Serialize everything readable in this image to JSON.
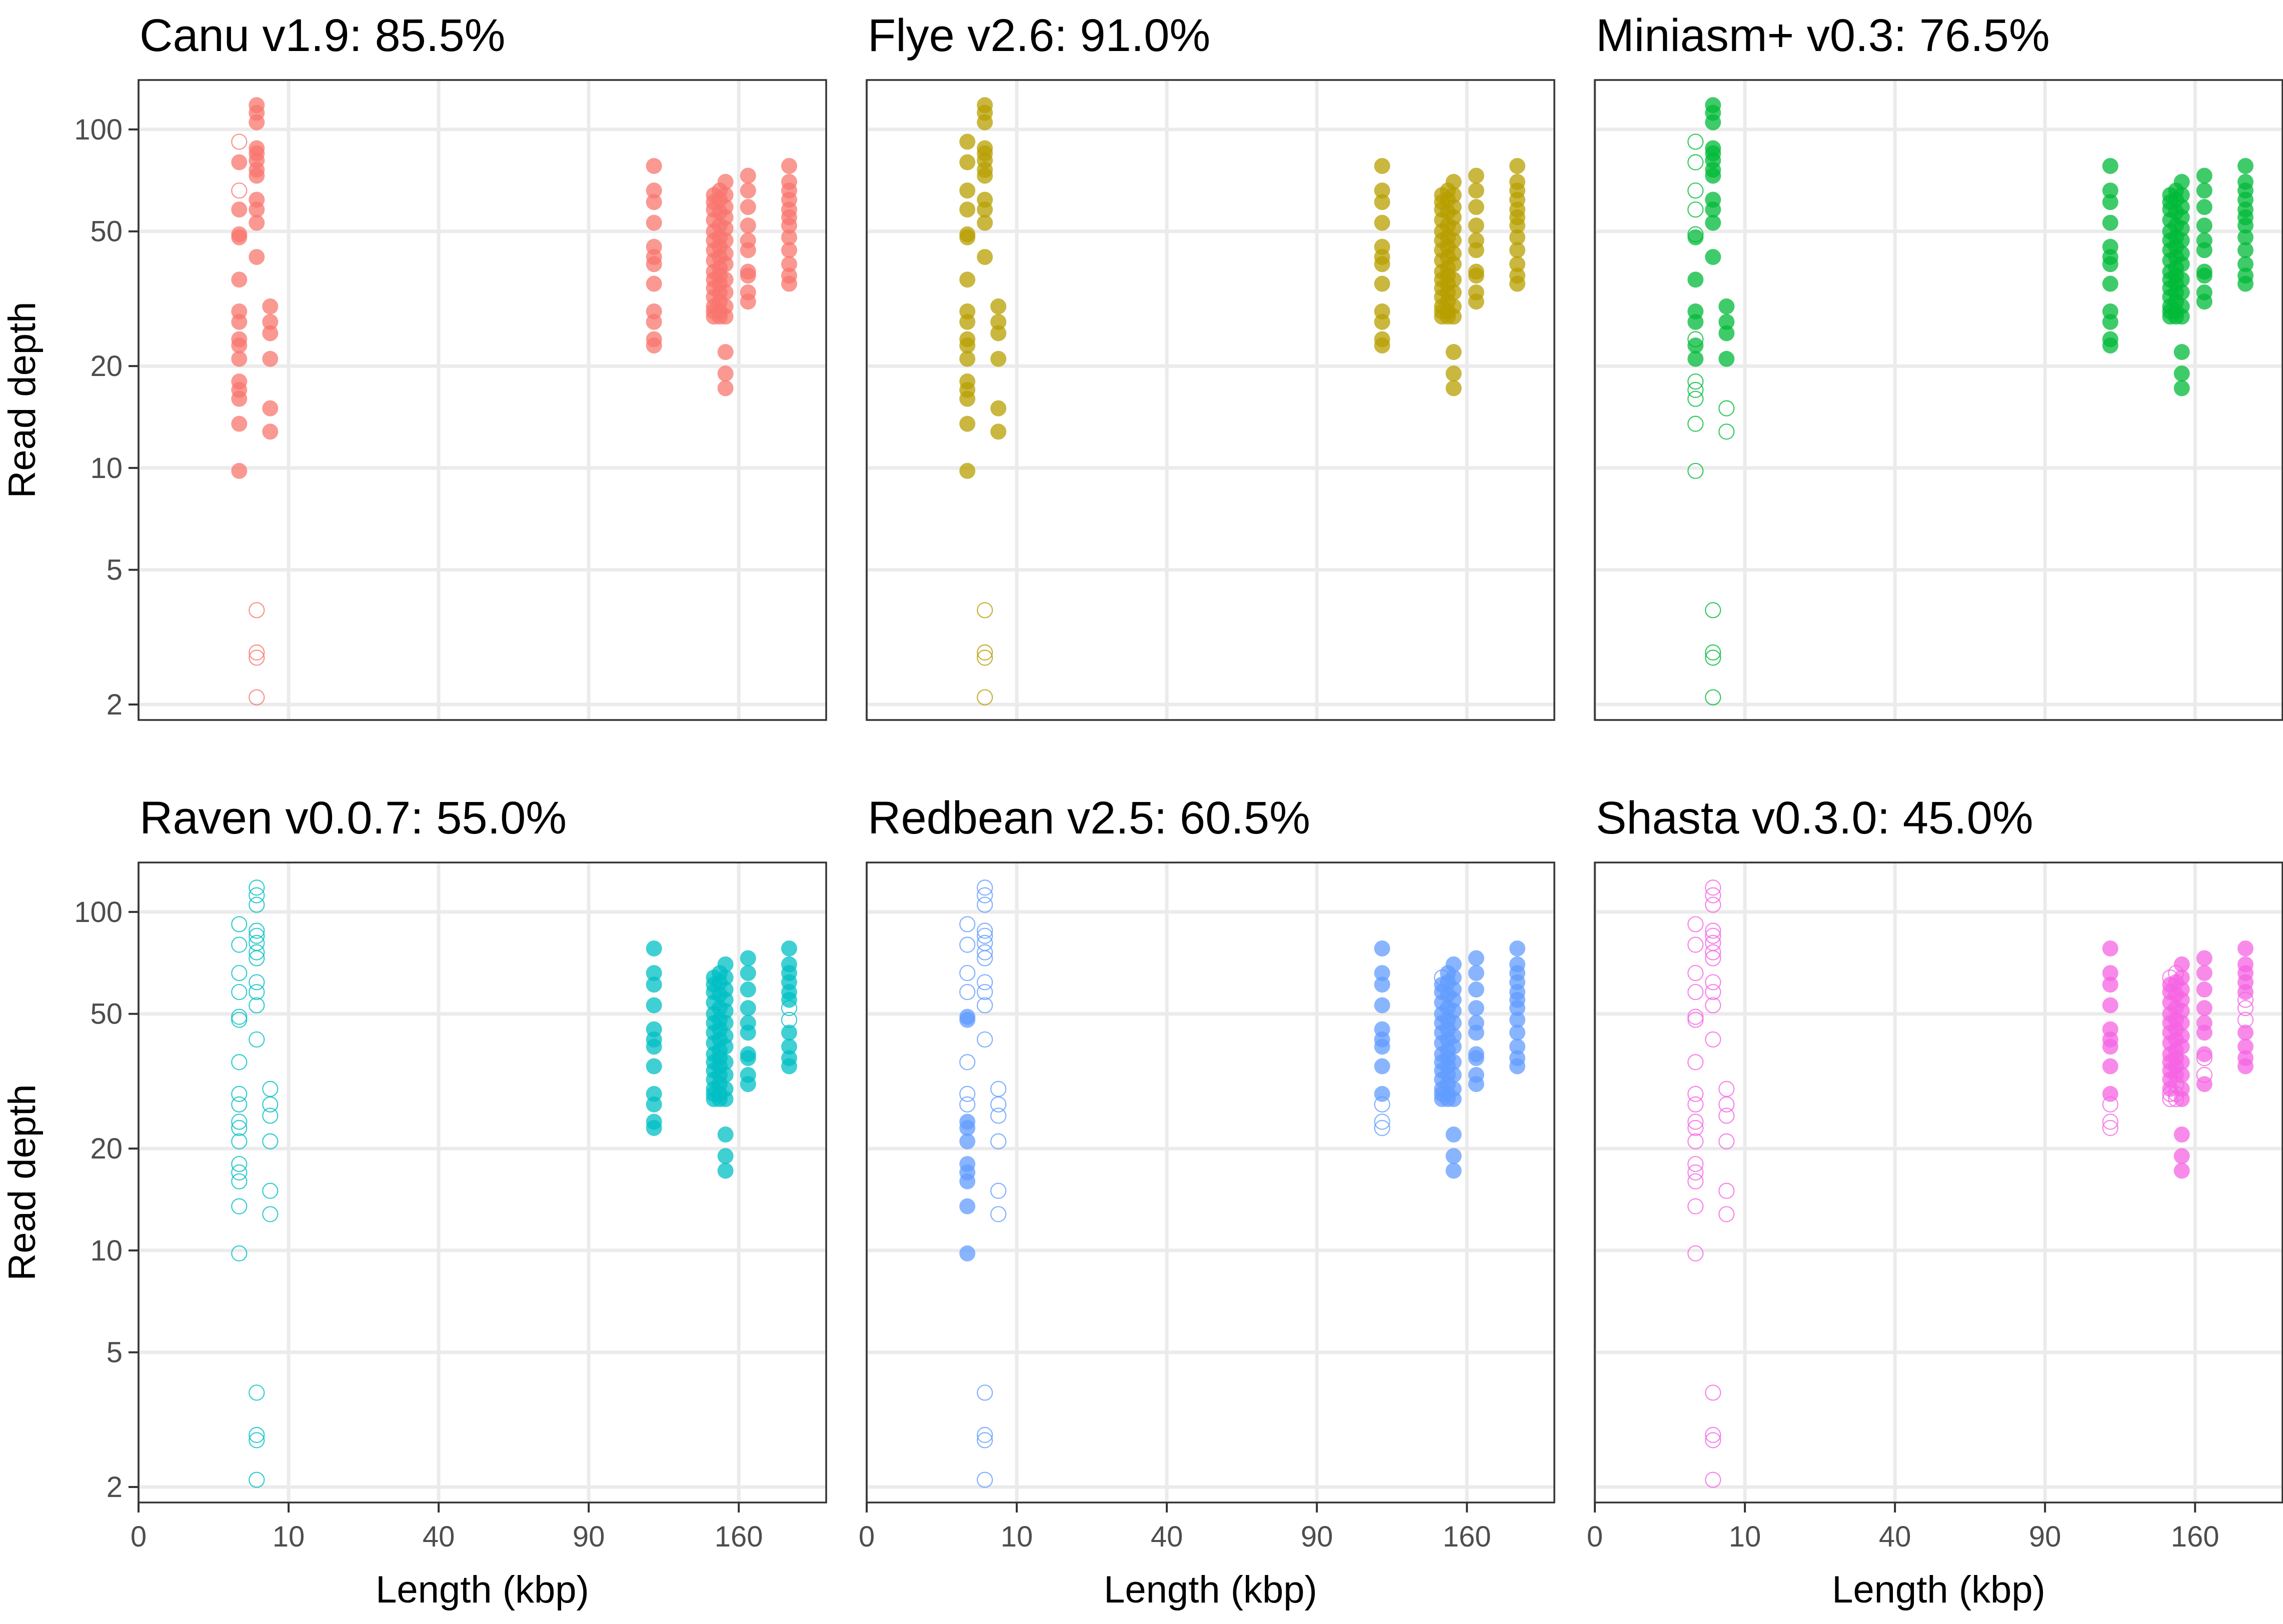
{
  "chart_data": {
    "type": "scatter",
    "layout": "facet grid, 2 rows x 3 columns, shared axes",
    "xlabel": "Length (kbp)",
    "ylabel": "Read depth",
    "x_scale": "square root",
    "y_scale": "log10",
    "xlim": [
      0,
      210
    ],
    "ylim": [
      1.8,
      140
    ],
    "x_ticks": [
      0,
      10,
      40,
      90,
      160
    ],
    "y_ticks": [
      2,
      5,
      10,
      20,
      50,
      100
    ],
    "grid": true,
    "legend": "none",
    "marker_encoding": "filled circle = filled point, hollow circle = unfilled point",
    "points": [
      {
        "x": 4.5,
        "y": 92
      },
      {
        "x": 4.5,
        "y": 80
      },
      {
        "x": 4.5,
        "y": 66
      },
      {
        "x": 4.5,
        "y": 58
      },
      {
        "x": 4.5,
        "y": 49
      },
      {
        "x": 4.5,
        "y": 48
      },
      {
        "x": 4.5,
        "y": 36
      },
      {
        "x": 4.5,
        "y": 29
      },
      {
        "x": 4.5,
        "y": 27
      },
      {
        "x": 4.5,
        "y": 24
      },
      {
        "x": 4.5,
        "y": 23
      },
      {
        "x": 4.5,
        "y": 21
      },
      {
        "x": 4.5,
        "y": 18
      },
      {
        "x": 4.5,
        "y": 17
      },
      {
        "x": 4.5,
        "y": 16
      },
      {
        "x": 4.5,
        "y": 13.5
      },
      {
        "x": 4.5,
        "y": 9.8
      },
      {
        "x": 6.2,
        "y": 118
      },
      {
        "x": 6.2,
        "y": 112
      },
      {
        "x": 6.2,
        "y": 105
      },
      {
        "x": 6.2,
        "y": 88
      },
      {
        "x": 6.2,
        "y": 85
      },
      {
        "x": 6.2,
        "y": 81
      },
      {
        "x": 6.2,
        "y": 76
      },
      {
        "x": 6.2,
        "y": 73
      },
      {
        "x": 6.2,
        "y": 62
      },
      {
        "x": 6.2,
        "y": 58
      },
      {
        "x": 6.2,
        "y": 53
      },
      {
        "x": 6.2,
        "y": 42
      },
      {
        "x": 6.2,
        "y": 3.8
      },
      {
        "x": 6.2,
        "y": 2.85
      },
      {
        "x": 6.2,
        "y": 2.75
      },
      {
        "x": 6.2,
        "y": 2.1
      },
      {
        "x": 7.7,
        "y": 30
      },
      {
        "x": 7.7,
        "y": 27
      },
      {
        "x": 7.7,
        "y": 25
      },
      {
        "x": 7.7,
        "y": 21
      },
      {
        "x": 7.7,
        "y": 15
      },
      {
        "x": 7.7,
        "y": 12.8
      },
      {
        "x": 118,
        "y": 78
      },
      {
        "x": 118,
        "y": 66
      },
      {
        "x": 118,
        "y": 61
      },
      {
        "x": 118,
        "y": 53
      },
      {
        "x": 118,
        "y": 45
      },
      {
        "x": 118,
        "y": 42
      },
      {
        "x": 118,
        "y": 40
      },
      {
        "x": 118,
        "y": 35
      },
      {
        "x": 118,
        "y": 29
      },
      {
        "x": 118,
        "y": 27
      },
      {
        "x": 118,
        "y": 24
      },
      {
        "x": 118,
        "y": 23
      },
      {
        "x": 147,
        "y": 64
      },
      {
        "x": 147,
        "y": 61
      },
      {
        "x": 147,
        "y": 58
      },
      {
        "x": 147,
        "y": 54
      },
      {
        "x": 147,
        "y": 50
      },
      {
        "x": 147,
        "y": 47
      },
      {
        "x": 147,
        "y": 44
      },
      {
        "x": 147,
        "y": 41
      },
      {
        "x": 147,
        "y": 38
      },
      {
        "x": 147,
        "y": 36
      },
      {
        "x": 147,
        "y": 34
      },
      {
        "x": 147,
        "y": 32
      },
      {
        "x": 147,
        "y": 30
      },
      {
        "x": 147,
        "y": 29
      },
      {
        "x": 147,
        "y": 28
      },
      {
        "x": 150,
        "y": 66
      },
      {
        "x": 150,
        "y": 62
      },
      {
        "x": 150,
        "y": 57
      },
      {
        "x": 150,
        "y": 52
      },
      {
        "x": 150,
        "y": 48
      },
      {
        "x": 150,
        "y": 45
      },
      {
        "x": 150,
        "y": 42
      },
      {
        "x": 150,
        "y": 39
      },
      {
        "x": 150,
        "y": 37
      },
      {
        "x": 150,
        "y": 35
      },
      {
        "x": 150,
        "y": 33
      },
      {
        "x": 150,
        "y": 31
      },
      {
        "x": 150,
        "y": 29
      },
      {
        "x": 150,
        "y": 28
      },
      {
        "x": 153,
        "y": 70
      },
      {
        "x": 153,
        "y": 64
      },
      {
        "x": 153,
        "y": 59
      },
      {
        "x": 153,
        "y": 55
      },
      {
        "x": 153,
        "y": 51
      },
      {
        "x": 153,
        "y": 47
      },
      {
        "x": 153,
        "y": 43
      },
      {
        "x": 153,
        "y": 40
      },
      {
        "x": 153,
        "y": 36
      },
      {
        "x": 153,
        "y": 33
      },
      {
        "x": 153,
        "y": 30
      },
      {
        "x": 153,
        "y": 28
      },
      {
        "x": 153,
        "y": 22
      },
      {
        "x": 153,
        "y": 19
      },
      {
        "x": 153,
        "y": 17.2
      },
      {
        "x": 165,
        "y": 73
      },
      {
        "x": 165,
        "y": 66
      },
      {
        "x": 165,
        "y": 59
      },
      {
        "x": 165,
        "y": 52
      },
      {
        "x": 165,
        "y": 47
      },
      {
        "x": 165,
        "y": 44
      },
      {
        "x": 165,
        "y": 38
      },
      {
        "x": 165,
        "y": 37
      },
      {
        "x": 165,
        "y": 33
      },
      {
        "x": 165,
        "y": 31
      },
      {
        "x": 188,
        "y": 78
      },
      {
        "x": 188,
        "y": 70
      },
      {
        "x": 188,
        "y": 66
      },
      {
        "x": 188,
        "y": 62
      },
      {
        "x": 188,
        "y": 58
      },
      {
        "x": 188,
        "y": 55
      },
      {
        "x": 188,
        "y": 52
      },
      {
        "x": 188,
        "y": 48
      },
      {
        "x": 188,
        "y": 44
      },
      {
        "x": 188,
        "y": 40
      },
      {
        "x": 188,
        "y": 37
      },
      {
        "x": 188,
        "y": 35
      }
    ],
    "panels": [
      {
        "title": "Canu v1.9: 85.5%",
        "color": "#F8766D",
        "hollow": [
          0,
          2,
          29,
          30,
          31,
          32
        ]
      },
      {
        "title": "Flye v2.6: 91.0%",
        "color": "#B79F00",
        "hollow": [
          29,
          30,
          31,
          32
        ]
      },
      {
        "title": "Miniasm+ v0.3: 76.5%",
        "color": "#00BA38",
        "hollow": [
          0,
          1,
          2,
          3,
          4,
          9,
          12,
          13,
          14,
          15,
          16,
          29,
          30,
          31,
          32,
          37,
          38
        ]
      },
      {
        "title": "Raven v0.0.7: 55.0%",
        "color": "#00BFC4",
        "hollow_ranges": [
          [
            0,
            38
          ],
          [
            111,
            112
          ]
        ]
      },
      {
        "title": "Redbean v2.5: 60.5%",
        "color": "#619CFF",
        "hollow_ranges": [
          [
            0,
            3
          ],
          [
            6,
            8
          ],
          [
            17,
            38
          ],
          [
            48,
            51
          ]
        ]
      },
      {
        "title": "Shasta v0.3.0: 45.0%",
        "color": "#F564E3",
        "hollow_ranges": [
          [
            0,
            38
          ],
          [
            48,
            51
          ],
          [
            64,
            66
          ],
          [
            77,
            79
          ],
          [
            102,
            103
          ],
          [
            110,
            112
          ]
        ]
      }
    ]
  }
}
